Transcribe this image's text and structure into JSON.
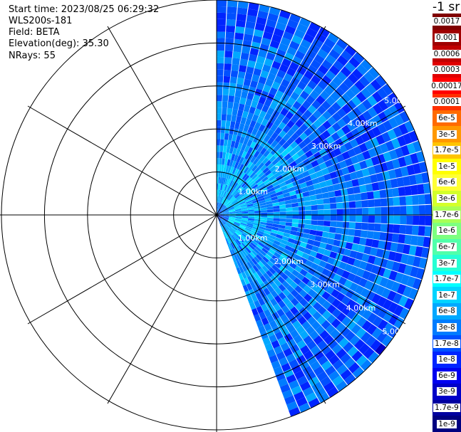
{
  "header": {
    "start_time": "Start time: 2023/08/25 06:29:32",
    "instrument": "WLS200s-181",
    "field": "Field: BETA",
    "elevation": "Elevation(deg): 35.30",
    "nrays": "NRays: 55"
  },
  "legend": {
    "title": "-1 sr",
    "entries": [
      {
        "label": "0.0017",
        "color": "#800000"
      },
      {
        "label": "0.001",
        "color": "#a00000"
      },
      {
        "label": "0.0006",
        "color": "#c00000"
      },
      {
        "label": "0.0003",
        "color": "#e00000"
      },
      {
        "label": "0.00017",
        "color": "#ff0000"
      },
      {
        "label": "0.0001",
        "color": "#ff3000"
      },
      {
        "label": "6e-5",
        "color": "#ff6a00"
      },
      {
        "label": "3e-5",
        "color": "#ff9800"
      },
      {
        "label": "1.7e-5",
        "color": "#ffc400"
      },
      {
        "label": "1e-5",
        "color": "#ffff00"
      },
      {
        "label": "6e-6",
        "color": "#ffff33"
      },
      {
        "label": "3e-6",
        "color": "#d4ff2a"
      },
      {
        "label": "1.7e-6",
        "color": "#a8ff55"
      },
      {
        "label": "1e-6",
        "color": "#7dff80"
      },
      {
        "label": "6e-7",
        "color": "#50ffaa"
      },
      {
        "label": "3e-7",
        "color": "#26ffd4"
      },
      {
        "label": "1.7e-7",
        "color": "#00ffff"
      },
      {
        "label": "1e-7",
        "color": "#00d4ff"
      },
      {
        "label": "6e-8",
        "color": "#00a8ff"
      },
      {
        "label": "3e-8",
        "color": "#007cff"
      },
      {
        "label": "1.7e-8",
        "color": "#0050ff"
      },
      {
        "label": "1e-8",
        "color": "#0024ff"
      },
      {
        "label": "6e-9",
        "color": "#0000f0"
      },
      {
        "label": "3e-9",
        "color": "#0000c8"
      },
      {
        "label": "1.7e-9",
        "color": "#0000a0"
      },
      {
        "label": "1e-9",
        "color": "#000080"
      }
    ]
  },
  "chart_data": {
    "type": "heatmap",
    "projection": "polar",
    "field": "BETA",
    "units": "sr-1",
    "elevation_deg": 35.3,
    "nrays": 55,
    "azimuth_range_deg": [
      0,
      160
    ],
    "range_km_max": 5.0,
    "range_rings_km": [
      1.0,
      2.0,
      3.0,
      4.0,
      5.0
    ],
    "ring_labels_upper": [
      "1.00km",
      "2.00km",
      "3.00km",
      "4.00km",
      "5.00km"
    ],
    "ring_labels_lower": [
      "1.00km",
      "2.00km",
      "3.00km",
      "4.00km",
      "5.00km"
    ],
    "spoke_step_deg": 30,
    "colormap": "blue-cyan-green-yellow-red, log scale 1e-9 to 0.0017",
    "dominant_values": [
      "1e-8",
      "3e-8",
      "6e-8",
      "1e-7",
      "1.7e-7",
      "3e-7"
    ],
    "color_scale": [
      "#000080",
      "#0000c8",
      "#0024ff",
      "#0050ff",
      "#007cff",
      "#00a8ff",
      "#00d4ff",
      "#00ffff",
      "#26ffd4"
    ],
    "grid": true
  }
}
